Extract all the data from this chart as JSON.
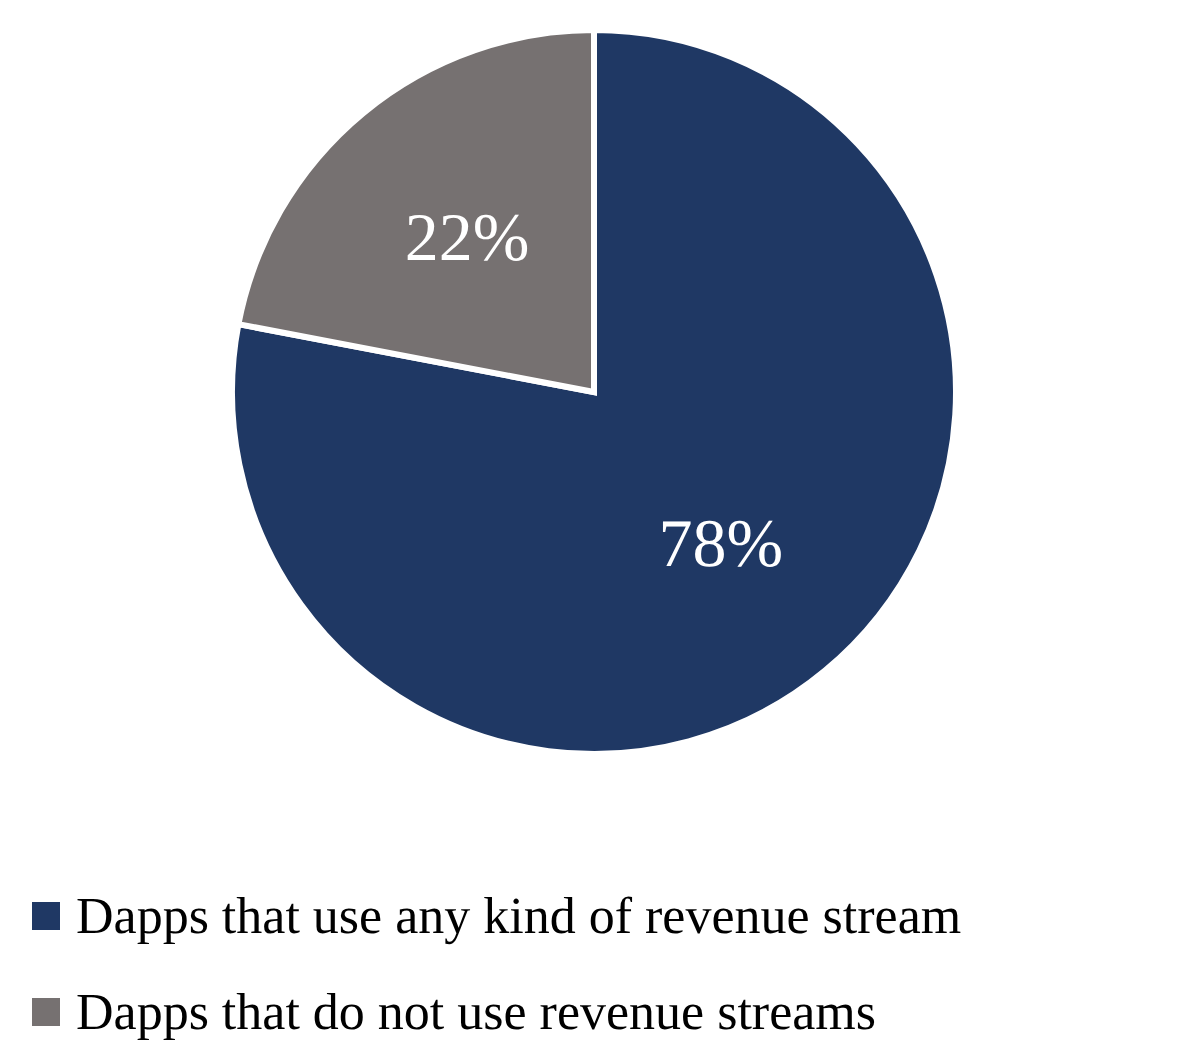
{
  "chart_data": {
    "type": "pie",
    "categories": [
      "Dapps that use any kind of revenue stream",
      "Dapps that do not use revenue streams"
    ],
    "values": [
      78,
      22
    ],
    "colors": [
      "#1f3864",
      "#767171"
    ],
    "value_labels": [
      "78%",
      "22%"
    ],
    "legend": "bottom"
  }
}
